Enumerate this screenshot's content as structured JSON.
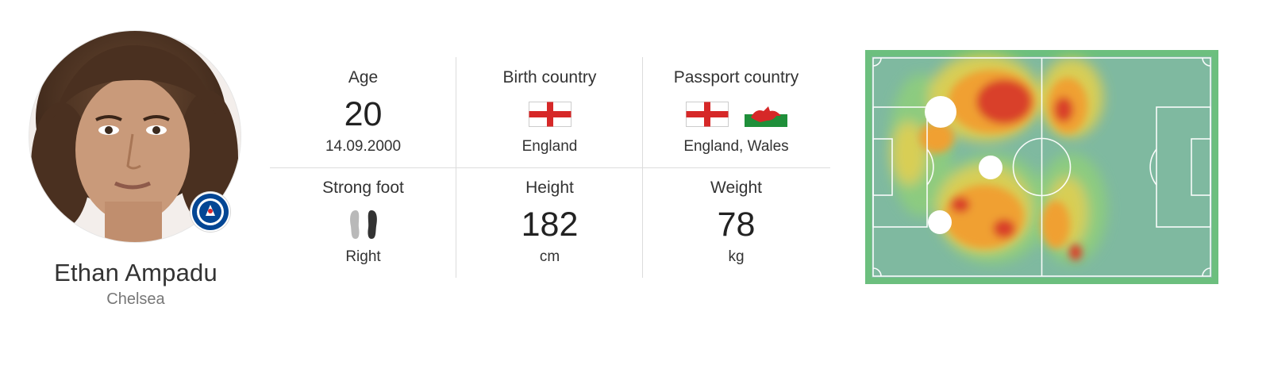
{
  "player": {
    "name": "Ethan Ampadu",
    "club": "Chelsea"
  },
  "stats": {
    "age": {
      "label": "Age",
      "value": "20",
      "dob": "14.09.2000"
    },
    "birth_country": {
      "label": "Birth country",
      "value": "England",
      "flags": [
        "england-flag"
      ]
    },
    "passport_country": {
      "label": "Passport country",
      "value": "England, Wales",
      "flags": [
        "england-flag",
        "wales-flag"
      ]
    },
    "strong_foot": {
      "label": "Strong foot",
      "value": "Right",
      "icon": "feet-icon"
    },
    "height": {
      "label": "Height",
      "value": "182",
      "unit": "cm"
    },
    "weight": {
      "label": "Weight",
      "value": "78",
      "unit": "kg"
    }
  },
  "colors": {
    "pitch_green": "#6cbf7e",
    "heat_red": "#d9412b",
    "heat_orange": "#f0a030",
    "heat_yellow": "#e8d24a",
    "chelsea_blue": "#034694"
  }
}
